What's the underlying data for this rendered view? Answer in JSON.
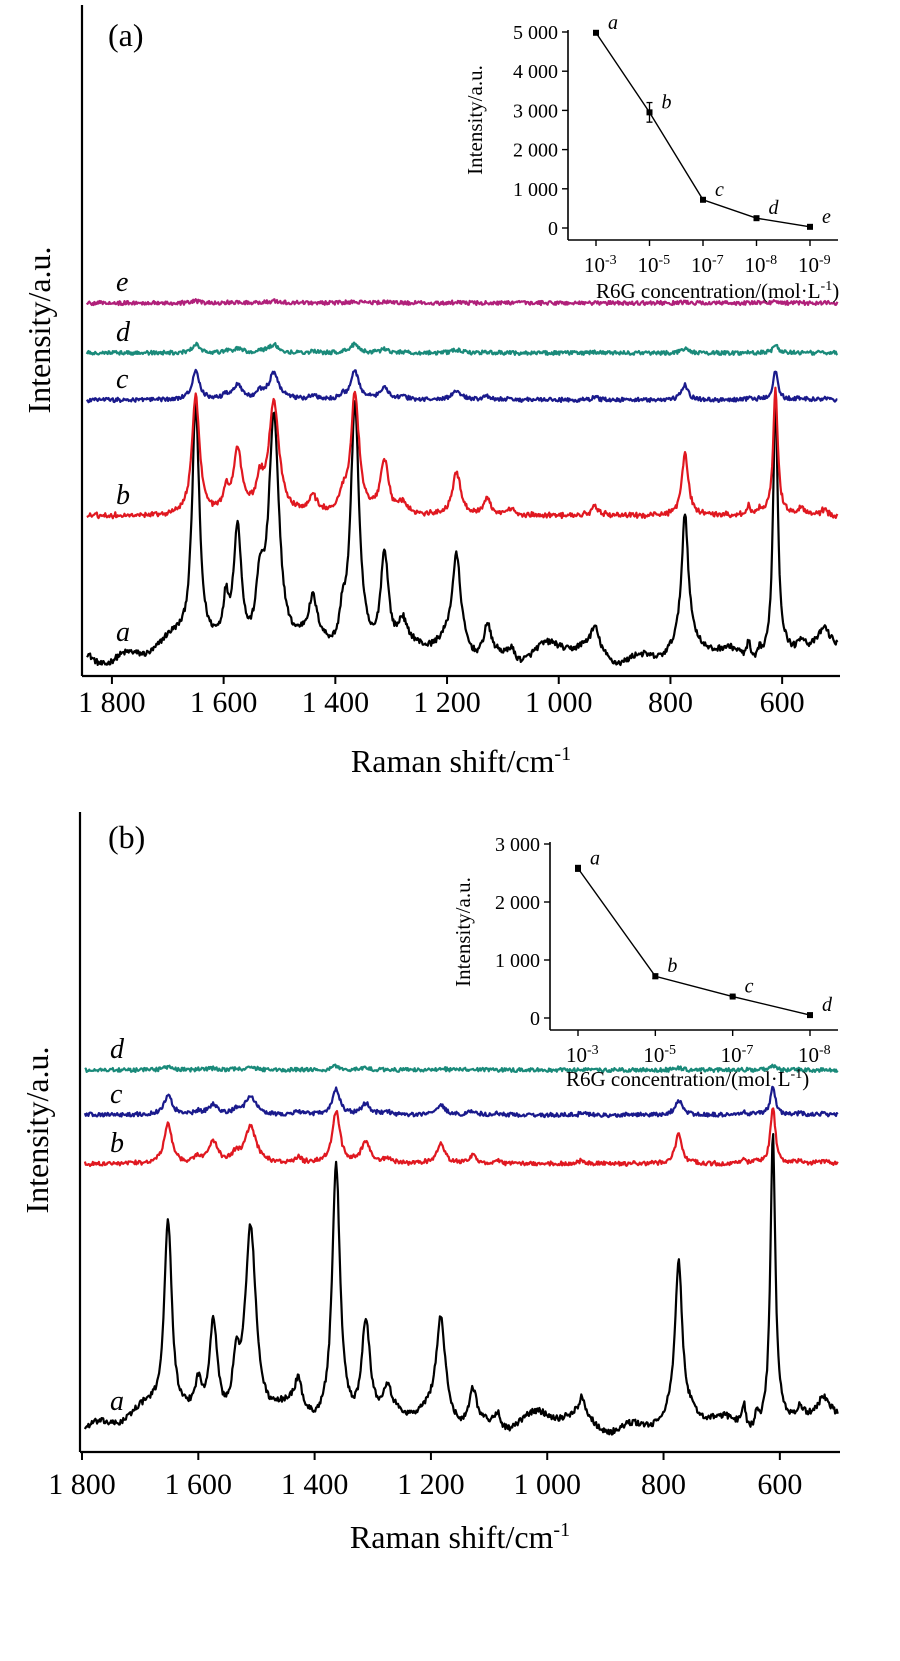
{
  "chart_data": [
    {
      "type": "line",
      "panel_label": "(a)",
      "xlabel_main": "Raman shift/cm",
      "xlabel_sup": "-1",
      "ylabel": "Intensity/a.u.",
      "xlim": [
        1850,
        500
      ],
      "xticks": [
        {
          "v": 1800,
          "label": "1 800"
        },
        {
          "v": 1600,
          "label": "1 600"
        },
        {
          "v": 1400,
          "label": "1 400"
        },
        {
          "v": 1200,
          "label": "1 200"
        },
        {
          "v": 1000,
          "label": "1 000"
        },
        {
          "v": 800,
          "label": "800"
        },
        {
          "v": 600,
          "label": "600"
        }
      ],
      "series": [
        {
          "label": "a",
          "color": "#000000",
          "baseline": 0,
          "scale": 1.0
        },
        {
          "label": "b",
          "color": "#e01820",
          "baseline": 137,
          "scale": 0.49
        },
        {
          "label": "c",
          "color": "#1a1a8c",
          "baseline": 253,
          "scale": 0.115
        },
        {
          "label": "d",
          "color": "#1a8a7a",
          "baseline": 300,
          "scale": 0.035
        },
        {
          "label": "e",
          "color": "#b0207a",
          "baseline": 350,
          "scale": 0.008
        }
      ],
      "peaks": [
        {
          "x": 1650,
          "h": 245,
          "w": 8
        },
        {
          "x": 1596,
          "h": 40,
          "w": 6
        },
        {
          "x": 1575,
          "h": 128,
          "w": 9
        },
        {
          "x": 1535,
          "h": 55,
          "w": 8
        },
        {
          "x": 1510,
          "h": 228,
          "w": 11
        },
        {
          "x": 1440,
          "h": 35,
          "w": 8
        },
        {
          "x": 1387,
          "h": 30,
          "w": 6
        },
        {
          "x": 1365,
          "h": 245,
          "w": 9
        },
        {
          "x": 1312,
          "h": 105,
          "w": 9
        },
        {
          "x": 1280,
          "h": 22,
          "w": 8
        },
        {
          "x": 1183,
          "h": 88,
          "w": 9
        },
        {
          "x": 1128,
          "h": 33,
          "w": 8
        },
        {
          "x": 1085,
          "h": 12,
          "w": 6
        },
        {
          "x": 935,
          "h": 20,
          "w": 8
        },
        {
          "x": 774,
          "h": 128,
          "w": 7
        },
        {
          "x": 660,
          "h": 18,
          "w": 4
        },
        {
          "x": 640,
          "h": 12,
          "w": 4
        },
        {
          "x": 612,
          "h": 258,
          "w": 5
        },
        {
          "x": 565,
          "h": 15,
          "w": 8
        },
        {
          "x": 525,
          "h": 12,
          "w": 8
        }
      ],
      "inset": {
        "xlabel_main": "R6G concentration/(mol·L",
        "xlabel_sup": "-1",
        "xlabel_end": ")",
        "ylabel": "Intensity/a.u.",
        "ylim": [
          0,
          5000
        ],
        "yticks": [
          {
            "v": 0,
            "label": "0"
          },
          {
            "v": 1000,
            "label": "1 000"
          },
          {
            "v": 2000,
            "label": "2 000"
          },
          {
            "v": 3000,
            "label": "3 000"
          },
          {
            "v": 4000,
            "label": "4 000"
          },
          {
            "v": 5000,
            "label": "5 000"
          }
        ],
        "categories": [
          {
            "base": "10",
            "exp": "-3"
          },
          {
            "base": "10",
            "exp": "-5"
          },
          {
            "base": "10",
            "exp": "-7"
          },
          {
            "base": "10",
            "exp": "-8"
          },
          {
            "base": "10",
            "exp": "-9"
          }
        ],
        "points": [
          {
            "label": "a",
            "value": 4980,
            "err": 40
          },
          {
            "label": "b",
            "value": 2950,
            "err": 250
          },
          {
            "label": "c",
            "value": 720,
            "err": 30
          },
          {
            "label": "d",
            "value": 250,
            "err": 20
          },
          {
            "label": "e",
            "value": 30,
            "err": 15
          }
        ]
      }
    },
    {
      "type": "line",
      "panel_label": "(b)",
      "xlabel_main": "Raman shift/cm",
      "xlabel_sup": "-1",
      "ylabel": "Intensity/a.u.",
      "xlim": [
        1800,
        500
      ],
      "xticks": [
        {
          "v": 1800,
          "label": "1 800"
        },
        {
          "v": 1600,
          "label": "1 600"
        },
        {
          "v": 1400,
          "label": "1 400"
        },
        {
          "v": 1200,
          "label": "1 200"
        },
        {
          "v": 1000,
          "label": "1 000"
        },
        {
          "v": 800,
          "label": "800"
        },
        {
          "v": 600,
          "label": "600"
        }
      ],
      "series": [
        {
          "label": "a",
          "color": "#000000",
          "baseline": 0,
          "scale": 1.0
        },
        {
          "label": "b",
          "color": "#e01820",
          "baseline": 258,
          "scale": 0.2
        },
        {
          "label": "c",
          "color": "#1a1a8c",
          "baseline": 307,
          "scale": 0.1
        },
        {
          "label": "d",
          "color": "#1a8a7a",
          "baseline": 352,
          "scale": 0.015
        }
      ],
      "peaks": [
        {
          "x": 1652,
          "h": 200,
          "w": 8
        },
        {
          "x": 1600,
          "h": 30,
          "w": 7
        },
        {
          "x": 1574,
          "h": 105,
          "w": 9
        },
        {
          "x": 1535,
          "h": 45,
          "w": 7
        },
        {
          "x": 1510,
          "h": 188,
          "w": 11
        },
        {
          "x": 1428,
          "h": 28,
          "w": 7
        },
        {
          "x": 1363,
          "h": 255,
          "w": 8
        },
        {
          "x": 1312,
          "h": 108,
          "w": 9
        },
        {
          "x": 1275,
          "h": 25,
          "w": 8
        },
        {
          "x": 1183,
          "h": 95,
          "w": 9
        },
        {
          "x": 1128,
          "h": 38,
          "w": 8
        },
        {
          "x": 1085,
          "h": 15,
          "w": 6
        },
        {
          "x": 940,
          "h": 18,
          "w": 6
        },
        {
          "x": 774,
          "h": 150,
          "w": 7
        },
        {
          "x": 662,
          "h": 25,
          "w": 4
        },
        {
          "x": 640,
          "h": 15,
          "w": 4
        },
        {
          "x": 612,
          "h": 290,
          "w": 5
        },
        {
          "x": 565,
          "h": 15,
          "w": 8
        },
        {
          "x": 525,
          "h": 12,
          "w": 8
        }
      ],
      "inset": {
        "xlabel_main": "R6G concentration/(mol·L",
        "xlabel_sup": "-1",
        "xlabel_end": ")",
        "ylabel": "Intensity/a.u.",
        "ylim": [
          0,
          3000
        ],
        "yticks": [
          {
            "v": 0,
            "label": "0"
          },
          {
            "v": 1000,
            "label": "1 000"
          },
          {
            "v": 2000,
            "label": "2 000"
          },
          {
            "v": 3000,
            "label": "3 000"
          }
        ],
        "categories": [
          {
            "base": "10",
            "exp": "-3"
          },
          {
            "base": "10",
            "exp": "-5"
          },
          {
            "base": "10",
            "exp": "-7"
          },
          {
            "base": "10",
            "exp": "-8"
          }
        ],
        "points": [
          {
            "label": "a",
            "value": 2580,
            "err": 50
          },
          {
            "label": "b",
            "value": 720,
            "err": 40
          },
          {
            "label": "c",
            "value": 370,
            "err": 15
          },
          {
            "label": "d",
            "value": 50,
            "err": 10
          }
        ]
      }
    }
  ]
}
